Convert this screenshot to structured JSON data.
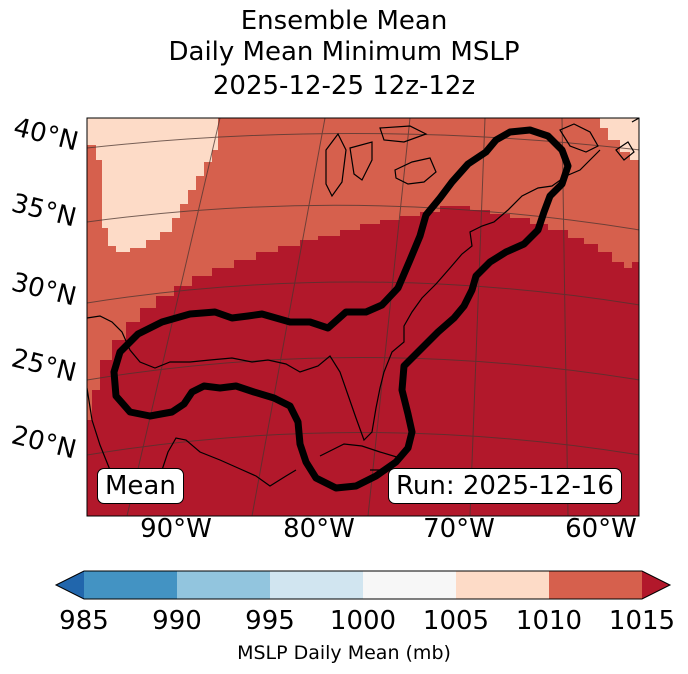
{
  "title": {
    "line1": "Ensemble Mean",
    "line2": "Daily Mean Minimum MSLP",
    "line3": "2025-12-25 12z-12z"
  },
  "map": {
    "lat_labels": [
      "40°N",
      "35°N",
      "30°N",
      "25°N",
      "20°N"
    ],
    "lon_labels": [
      "90°W",
      "80°W",
      "70°W",
      "60°W"
    ],
    "mean_label": "Mean",
    "run_label": "Run: 2025-12-16",
    "contour_level_mb": 1015,
    "fill_colors": {
      "1005-1010": "#fddbc7",
      "1010-1015": "#d6604d",
      "over-1015": "#b2182b"
    },
    "contour_color": "#000000"
  },
  "colorbar": {
    "ticks": [
      "985",
      "990",
      "995",
      "1000",
      "1005",
      "1010",
      "1015"
    ],
    "colors": [
      "#2166ac",
      "#4393c3",
      "#92c5de",
      "#d1e5f0",
      "#f7f7f7",
      "#fddbc7",
      "#d6604d",
      "#b2182b"
    ],
    "label": "MSLP Daily Mean (mb)"
  }
}
